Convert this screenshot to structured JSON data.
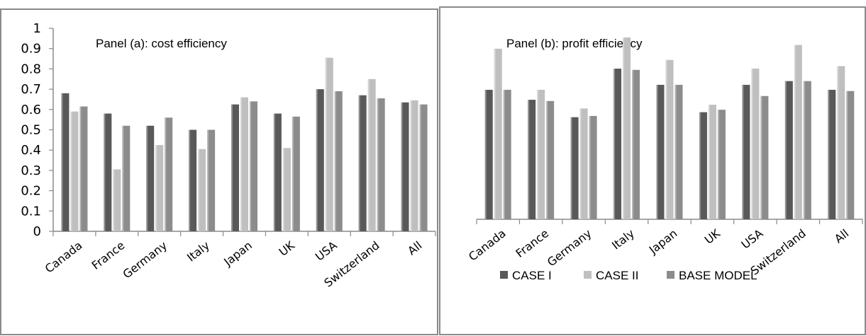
{
  "colors": {
    "case_i": "#595959",
    "case_ii": "#bfbfbf",
    "base_model": "#8c8c8c",
    "frame": "#8a8a8a"
  },
  "legend": {
    "case_i": "CASE I",
    "case_ii": "CASE II",
    "base_model": "BASE MODEL"
  },
  "chart_data": [
    {
      "type": "bar",
      "title": "Panel (a): cost efficiency",
      "categories": [
        "Canada",
        "France",
        "Germany",
        "Italy",
        "Japan",
        "UK",
        "USA",
        "Switzerland",
        "All"
      ],
      "series": [
        {
          "name": "CASE I",
          "values": [
            0.68,
            0.58,
            0.52,
            0.5,
            0.625,
            0.58,
            0.7,
            0.67,
            0.635
          ]
        },
        {
          "name": "CASE II",
          "values": [
            0.59,
            0.305,
            0.425,
            0.405,
            0.66,
            0.41,
            0.855,
            0.75,
            0.645
          ]
        },
        {
          "name": "BASE MODEL",
          "values": [
            0.615,
            0.52,
            0.56,
            0.5,
            0.64,
            0.565,
            0.69,
            0.655,
            0.625
          ]
        }
      ],
      "ylim": [
        0,
        1
      ],
      "yticks": [
        "1",
        "0.9",
        "0.8",
        "0.7",
        "0.6",
        "0.5",
        "0.4",
        "0.3",
        "0.2",
        "0.1",
        "0"
      ],
      "legend": "none"
    },
    {
      "type": "bar",
      "title": "Panel (b): profit efficiency",
      "categories": [
        "Canada",
        "France",
        "Germany",
        "Italy",
        "Japan",
        "UK",
        "USA",
        "Switzerland",
        "All"
      ],
      "series": [
        {
          "name": "CASE I",
          "values": [
            0.52,
            0.48,
            0.41,
            0.605,
            0.54,
            0.43,
            0.54,
            0.555,
            0.52
          ]
        },
        {
          "name": "CASE II",
          "values": [
            0.685,
            0.52,
            0.445,
            0.73,
            0.64,
            0.46,
            0.605,
            0.7,
            0.615
          ]
        },
        {
          "name": "BASE MODEL",
          "values": [
            0.52,
            0.475,
            0.415,
            0.6,
            0.54,
            0.44,
            0.495,
            0.555,
            0.515
          ]
        }
      ],
      "ylim": [
        0,
        1
      ],
      "legend": "bottom"
    }
  ]
}
